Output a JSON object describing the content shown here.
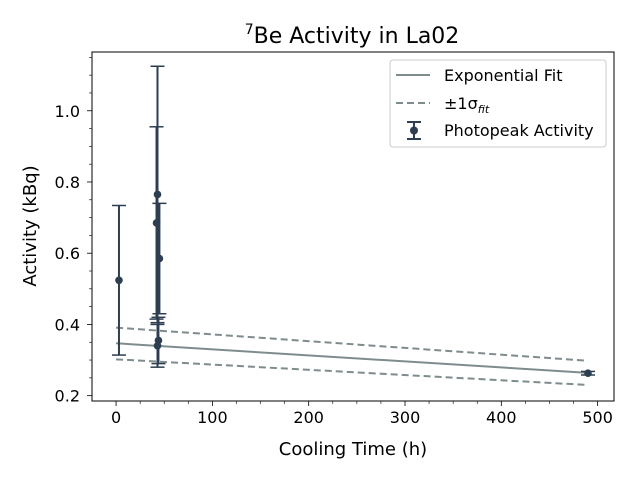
{
  "chart_data": {
    "type": "scatter",
    "title": {
      "prefix": "7",
      "main": "Be Activity in La02"
    },
    "xlabel": "Cooling Time (h)",
    "ylabel": "Activity (kBq)",
    "xlim": [
      -25,
      517
    ],
    "ylim": [
      0.185,
      1.165
    ],
    "xticks": [
      0,
      100,
      200,
      300,
      400,
      500
    ],
    "yticks": [
      0.2,
      0.4,
      0.6,
      0.8,
      1.0
    ],
    "xtick_labels": [
      "0",
      "100",
      "200",
      "300",
      "400",
      "500"
    ],
    "ytick_labels": [
      "0.2",
      "0.4",
      "0.6",
      "0.8",
      "1.0"
    ],
    "legend_position": "top-right",
    "legend": [
      {
        "label": "Exponential Fit"
      },
      {
        "label": "±1σ",
        "subscript": "fit"
      },
      {
        "label": "Photopeak Activity"
      }
    ],
    "series": [
      {
        "name": "Photopeak Activity",
        "kind": "errorbar",
        "color": "#2c3e50",
        "points": [
          {
            "x": 3,
            "y": 0.524,
            "err": 0.21
          },
          {
            "x": 42,
            "y": 0.685,
            "err": 0.27
          },
          {
            "x": 43,
            "y": 0.765,
            "err": 0.36
          },
          {
            "x": 45,
            "y": 0.585,
            "err": 0.155
          },
          {
            "x": 44,
            "y": 0.355,
            "err": 0.065
          },
          {
            "x": 43,
            "y": 0.34,
            "err": 0.06
          },
          {
            "x": 490,
            "y": 0.263,
            "err": 0.005
          }
        ]
      },
      {
        "name": "Exponential Fit",
        "kind": "line",
        "color": "#7f8c8d",
        "x": [
          0,
          490
        ],
        "y": [
          0.347,
          0.264
        ]
      },
      {
        "name": "±1σfit",
        "kind": "band",
        "color": "#7f8c8d",
        "x": [
          0,
          490
        ],
        "upper": [
          0.391,
          0.298
        ],
        "lower": [
          0.302,
          0.23
        ]
      }
    ]
  }
}
